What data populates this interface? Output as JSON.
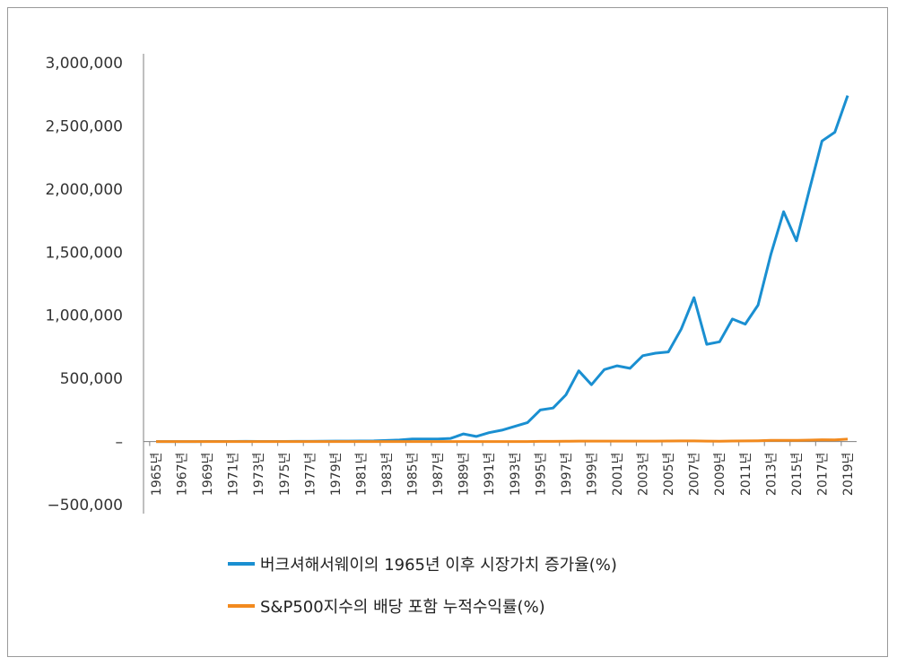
{
  "chart_data": {
    "type": "line",
    "xlabel": "",
    "ylabel": "",
    "ylim": [
      -500000,
      3000000
    ],
    "yticks": [
      3000000,
      2500000,
      2000000,
      1500000,
      1000000,
      500000,
      0,
      -500000
    ],
    "ytick_labels": [
      "3,000,000",
      "2,500,000",
      "2,000,000",
      "1,500,000",
      "1,000,000",
      "500,000",
      "–",
      "−500,000"
    ],
    "x": [
      1965,
      1966,
      1967,
      1968,
      1969,
      1970,
      1971,
      1972,
      1973,
      1974,
      1975,
      1976,
      1977,
      1978,
      1979,
      1980,
      1981,
      1982,
      1983,
      1984,
      1985,
      1986,
      1987,
      1988,
      1989,
      1990,
      1991,
      1992,
      1993,
      1994,
      1995,
      1996,
      1997,
      1998,
      1999,
      2000,
      2001,
      2002,
      2003,
      2004,
      2005,
      2006,
      2007,
      2008,
      2009,
      2010,
      2011,
      2012,
      2013,
      2014,
      2015,
      2016,
      2017,
      2018,
      2019
    ],
    "x_tick_labels": [
      "1965년",
      "1967년",
      "1969년",
      "1971년",
      "1973년",
      "1975년",
      "1977년",
      "1979년",
      "1981년",
      "1983년",
      "1985년",
      "1987년",
      "1989년",
      "1991년",
      "1993년",
      "1995년",
      "1997년",
      "1999년",
      "2001년",
      "2003년",
      "2005년",
      "2007년",
      "2009년",
      "2011년",
      "2013년",
      "2015년",
      "2017년",
      "2019년"
    ],
    "series": [
      {
        "name": "버크셔해서웨이의 1965년 이후 시장가치 증가율(%)",
        "color": "#1a8fd1",
        "values": [
          0,
          0,
          0,
          0,
          500,
          500,
          500,
          1000,
          500,
          500,
          500,
          1000,
          1500,
          2000,
          3000,
          3000,
          4000,
          5000,
          8000,
          12000,
          20000,
          20000,
          20000,
          25000,
          60000,
          40000,
          70000,
          90000,
          120000,
          150000,
          250000,
          265000,
          370000,
          560000,
          450000,
          570000,
          600000,
          580000,
          680000,
          700000,
          710000,
          890000,
          1140000,
          770000,
          790000,
          970000,
          930000,
          1080000,
          1480000,
          1820000,
          1590000,
          1990000,
          2380000,
          2450000,
          2740000
        ]
      },
      {
        "name": "S&P500지수의 배당 포함 누적수익률(%)",
        "color": "#f28a1e",
        "values": [
          0,
          0,
          0,
          0,
          0,
          0,
          0,
          0,
          0,
          0,
          0,
          0,
          0,
          0,
          0,
          0,
          0,
          0,
          0,
          0,
          0,
          0,
          0,
          0,
          0,
          0,
          0,
          0,
          0,
          0,
          1000,
          1500,
          2000,
          3000,
          3500,
          3500,
          3500,
          3000,
          3500,
          3500,
          4000,
          4500,
          5000,
          3000,
          2000,
          4000,
          5000,
          6000,
          9000,
          10000,
          9000,
          11000,
          14000,
          13000,
          19000
        ]
      }
    ]
  }
}
